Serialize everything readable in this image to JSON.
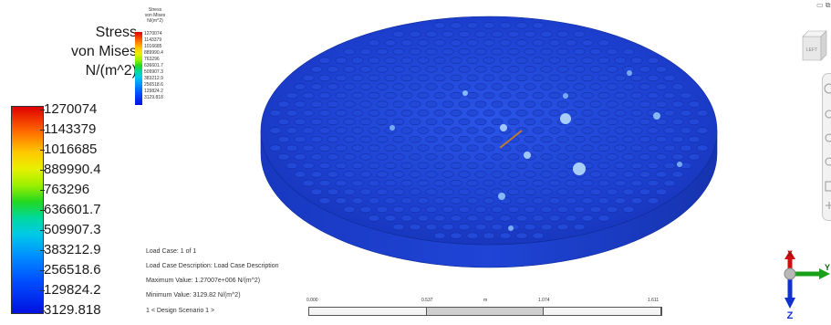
{
  "legend": {
    "title_lines": [
      "Stress",
      "von Mises",
      "N/(m^2)"
    ],
    "ticks": [
      "1270074",
      "1143379",
      "1016685",
      "889990.4",
      "763296",
      "636601.7",
      "509907.3",
      "383212.9",
      "256518.6",
      "129824.2",
      "3129.818"
    ]
  },
  "info": {
    "load_case": "Load Case:  1 of 1",
    "load_case_description": "Load Case Description:  Load Case Description",
    "maximum_value": "Maximum Value:  1.27007e+006 N/(m^2)",
    "minimum_value": "Minimum Value:  3129.82 N/(m^2)",
    "design_scenario": "1 < Design Scenario 1 >"
  },
  "scale_bar": {
    "labels": [
      "0.000",
      "0.537",
      "m",
      "1.074",
      "1.611"
    ]
  },
  "view_cube": {
    "face_label": "LEFT"
  },
  "triad": {
    "x": "X",
    "y": "Y",
    "z": "Z"
  },
  "colors": {
    "model_base": "#1c3fcf",
    "hotspot": "#bfe6ff",
    "legend_max": "#e00000",
    "legend_min": "#0010e0"
  },
  "icons": [
    "view-cube-icon",
    "navigation-bar-icon",
    "minimize-icon",
    "restore-icon",
    "triad-icon"
  ]
}
